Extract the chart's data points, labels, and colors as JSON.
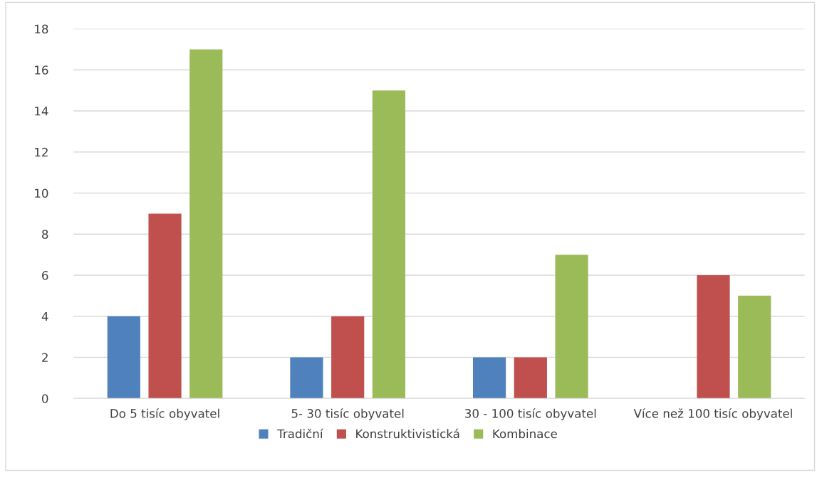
{
  "chart_data": {
    "type": "bar",
    "categories": [
      "Do 5 tisíc obyvatel",
      "5- 30 tisíc obyvatel",
      "30 - 100 tisíc obyvatel",
      "Více než 100 tisíc obyvatel"
    ],
    "series": [
      {
        "name": "Tradiční",
        "color": "#4f81bd",
        "values": [
          4,
          2,
          2,
          0
        ]
      },
      {
        "name": "Konstruktivistická",
        "color": "#c0504d",
        "values": [
          9,
          4,
          2,
          6
        ]
      },
      {
        "name": "Kombinace",
        "color": "#9bbb59",
        "values": [
          17,
          15,
          7,
          5
        ]
      }
    ],
    "ylim": [
      0,
      18
    ],
    "yticks": [
      0,
      2,
      4,
      6,
      8,
      10,
      12,
      14,
      16,
      18
    ],
    "grid": "y",
    "legend": "bottom"
  }
}
